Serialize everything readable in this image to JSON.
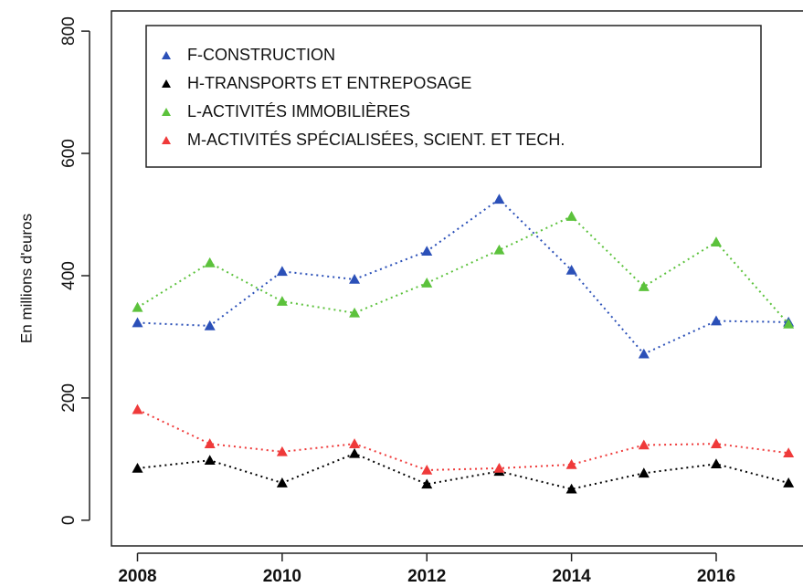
{
  "chart_data": {
    "type": "line",
    "y_label": "En millions d'euros",
    "x": [
      2008,
      2009,
      2010,
      2011,
      2012,
      2013,
      2014,
      2015,
      2016,
      2017
    ],
    "xlim": [
      2007.64,
      2017.2
    ],
    "xticks": [
      2008,
      2010,
      2012,
      2014,
      2016
    ],
    "ylim": [
      -42,
      833
    ],
    "yticks": [
      0,
      200,
      400,
      600,
      800
    ],
    "legend_position": "top-left",
    "series": [
      {
        "name": "F-CONSTRUCTION",
        "color": "#2b50b8",
        "values": [
          323,
          318,
          407,
          394,
          440,
          525,
          409,
          272,
          326,
          324
        ]
      },
      {
        "name": "H-TRANSPORTS ET ENTREPOSAGE",
        "color": "#000000",
        "values": [
          85,
          98,
          61,
          109,
          59,
          80,
          51,
          77,
          92,
          61
        ]
      },
      {
        "name": "L-ACTIVITÉS IMMOBILIÈRES",
        "color": "#5cc23c",
        "values": [
          348,
          421,
          358,
          339,
          388,
          442,
          497,
          382,
          455,
          321
        ]
      },
      {
        "name": "M-ACTIVITÉS SPÉCIALISÉES, SCIENT. ET TECH.",
        "color": "#ef3a3a",
        "values": [
          181,
          125,
          112,
          125,
          82,
          85,
          91,
          123,
          125,
          110
        ]
      }
    ]
  }
}
